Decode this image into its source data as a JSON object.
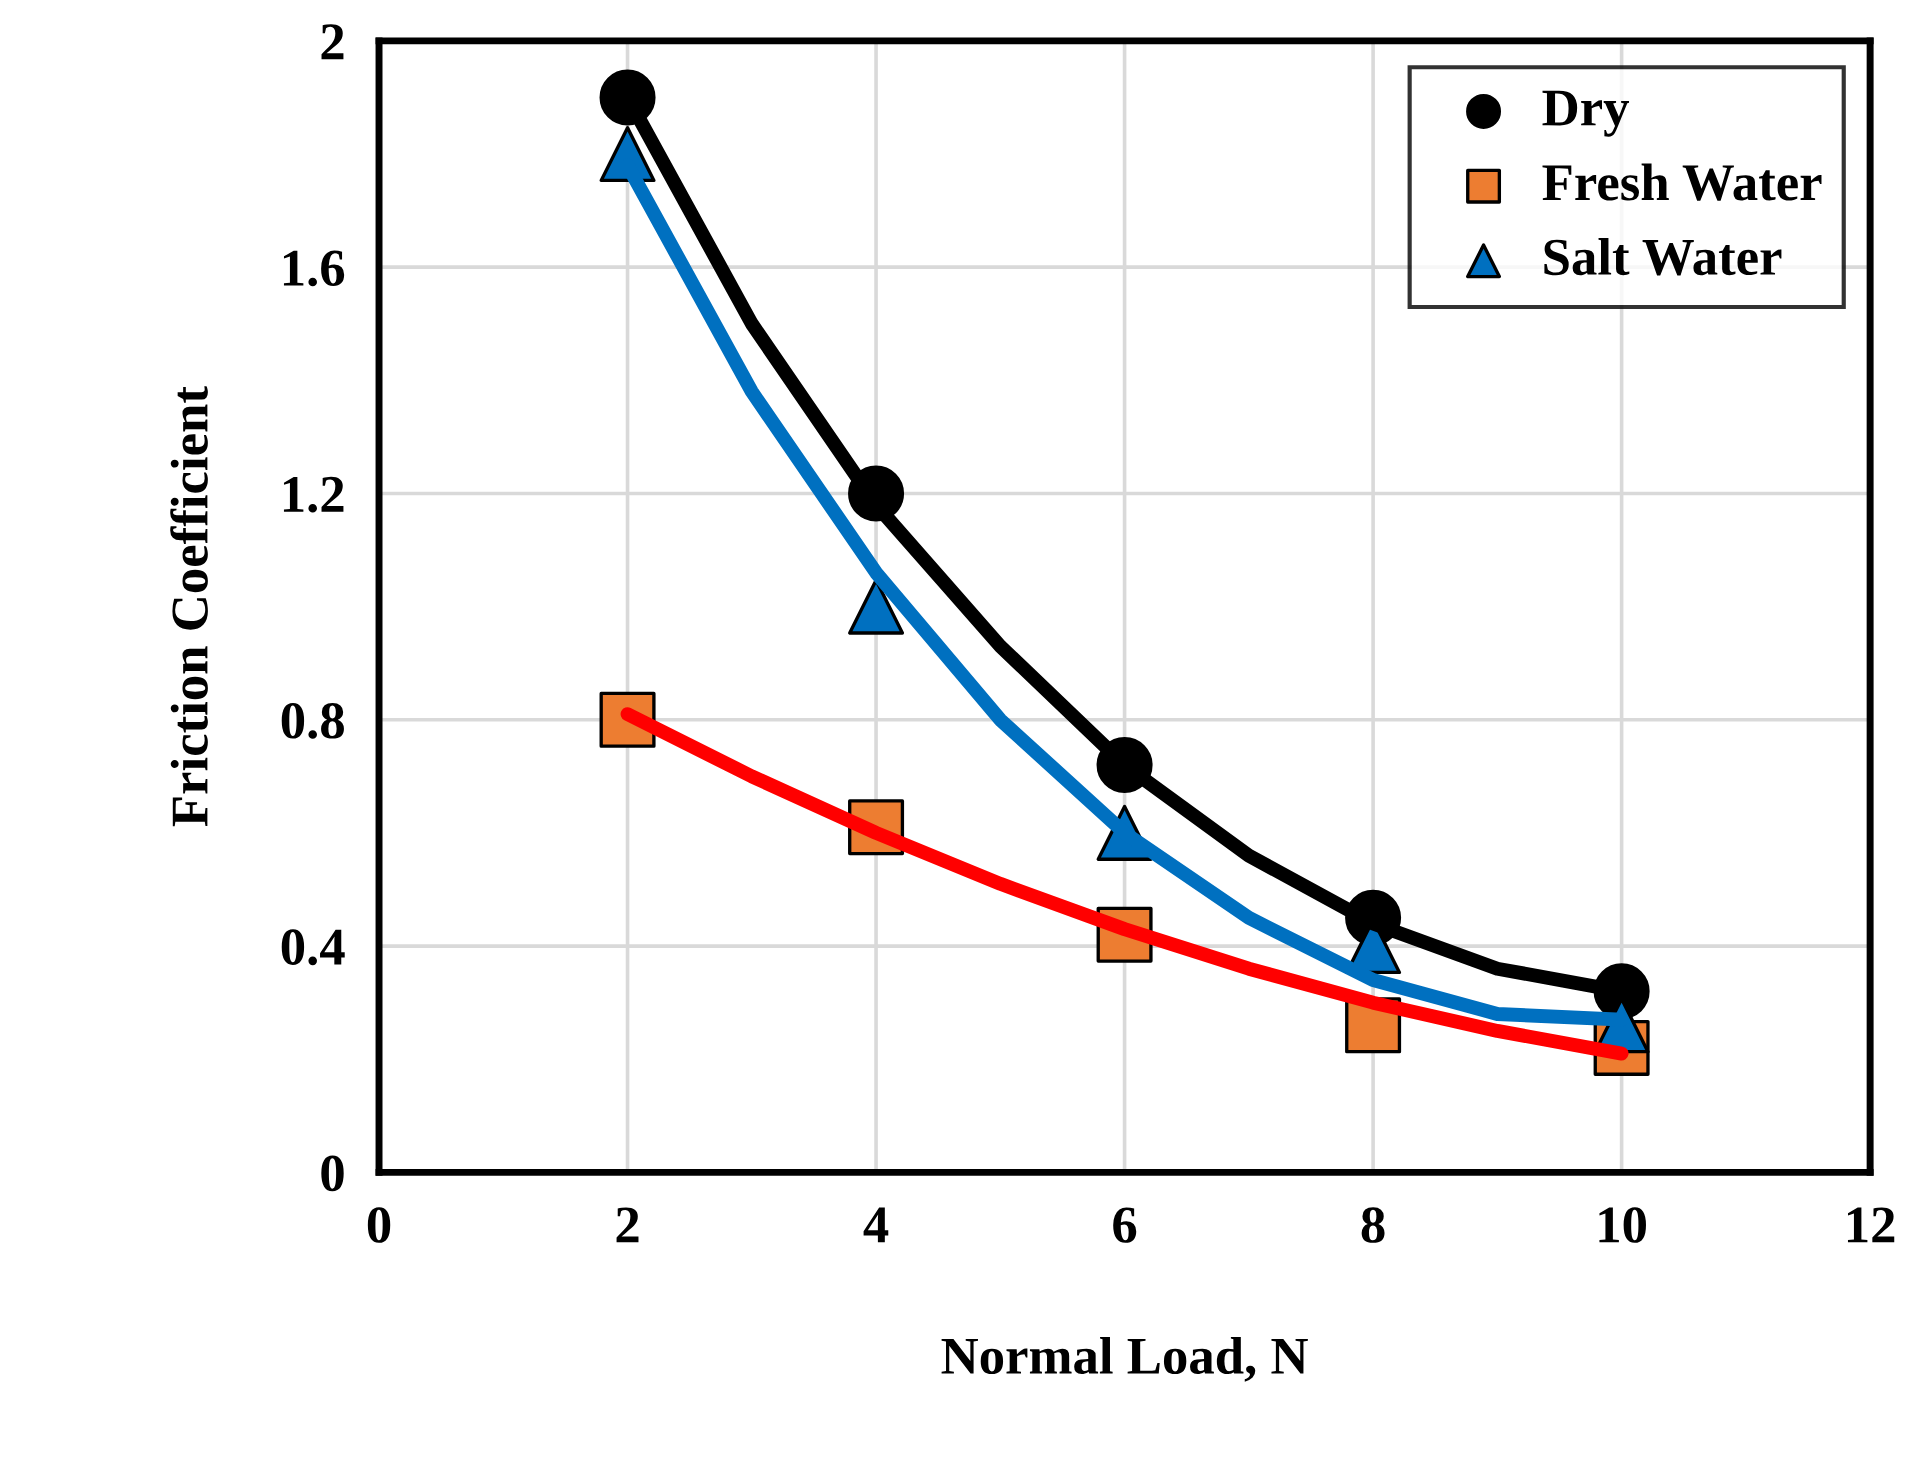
{
  "chart_data": {
    "type": "scatter",
    "xlabel": "Normal Load, N",
    "ylabel": "Friction Coefficient",
    "xlim": [
      0,
      12
    ],
    "xticks": [
      0,
      2,
      4,
      6,
      8,
      10,
      12
    ],
    "ylim": [
      0,
      2
    ],
    "yticks": [
      0,
      0.4,
      0.8,
      1.2,
      1.6,
      2
    ],
    "grid": true,
    "legend": "top right",
    "series": [
      {
        "type": "line",
        "color": "#000000",
        "marker": "none",
        "x": [
          2,
          3,
          4,
          5,
          6,
          7,
          8,
          9,
          10
        ],
        "values": [
          1.9,
          1.5,
          1.18,
          0.93,
          0.72,
          0.56,
          0.44,
          0.36,
          0.32
        ]
      },
      {
        "type": "line",
        "color": "#0070c0",
        "marker": "none",
        "x": [
          2,
          3,
          4,
          5,
          6,
          7,
          8,
          9,
          10
        ],
        "values": [
          1.78,
          1.38,
          1.06,
          0.8,
          0.6,
          0.45,
          0.34,
          0.28,
          0.27
        ]
      },
      {
        "type": "line",
        "color": "#ff0000",
        "marker": "none",
        "x": [
          2,
          3,
          4,
          5,
          6,
          7,
          8,
          9,
          10
        ],
        "values": [
          0.81,
          0.7,
          0.6,
          0.51,
          0.43,
          0.36,
          0.3,
          0.25,
          0.21
        ]
      },
      {
        "name": "Dry",
        "color": "#000000",
        "marker": "circle",
        "x": [
          2,
          4,
          6,
          8,
          10
        ],
        "values": [
          1.9,
          1.2,
          0.72,
          0.45,
          0.32
        ]
      },
      {
        "name": "Fresh Water",
        "color": "#ed7d31",
        "marker": "square",
        "x": [
          2,
          4,
          6,
          8,
          10
        ],
        "values": [
          0.8,
          0.61,
          0.42,
          0.26,
          0.22
        ]
      },
      {
        "name": "Salt Water",
        "color": "#0070c0",
        "marker": "triangle",
        "x": [
          2,
          4,
          6,
          8,
          10
        ],
        "values": [
          1.8,
          1.0,
          0.6,
          0.4,
          0.26
        ]
      }
    ]
  }
}
